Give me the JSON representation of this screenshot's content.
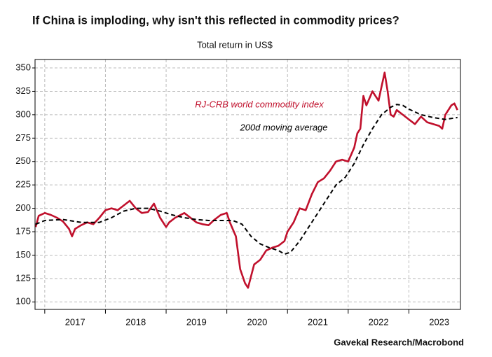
{
  "chart_data": {
    "type": "line",
    "title": "If China is imploding, why isn't this reflected in commodity prices?",
    "subtitle": "Total return in US$",
    "source": "Gavekal Research/Macrobond",
    "xlim": [
      2016.84,
      2023.85
    ],
    "xticks": [
      2017,
      2018,
      2019,
      2020,
      2021,
      2022,
      2023
    ],
    "year_labels": [
      {
        "value": 2017.5,
        "label": "2017"
      },
      {
        "value": 2018.5,
        "label": "2018"
      },
      {
        "value": 2019.5,
        "label": "2019"
      },
      {
        "value": 2020.5,
        "label": "2020"
      },
      {
        "value": 2021.5,
        "label": "2021"
      },
      {
        "value": 2022.5,
        "label": "2022"
      },
      {
        "value": 2023.5,
        "label": "2023"
      }
    ],
    "ylim": [
      92,
      359
    ],
    "yticks": [
      100,
      125,
      150,
      175,
      200,
      225,
      250,
      275,
      300,
      325,
      350
    ],
    "grid": true,
    "series": [
      {
        "name": "RJ-CRB world commodity index",
        "color": "#c0102c",
        "dashed": false,
        "x": [
          2016.85,
          2016.9,
          2017.0,
          2017.1,
          2017.2,
          2017.3,
          2017.4,
          2017.45,
          2017.5,
          2017.6,
          2017.7,
          2017.8,
          2017.9,
          2018.0,
          2018.1,
          2018.2,
          2018.3,
          2018.4,
          2018.5,
          2018.6,
          2018.7,
          2018.8,
          2018.9,
          2019.0,
          2019.05,
          2019.15,
          2019.3,
          2019.4,
          2019.5,
          2019.6,
          2019.7,
          2019.8,
          2019.9,
          2020.0,
          2020.05,
          2020.15,
          2020.22,
          2020.3,
          2020.35,
          2020.45,
          2020.55,
          2020.65,
          2020.75,
          2020.85,
          2020.95,
          2021.0,
          2021.1,
          2021.2,
          2021.3,
          2021.4,
          2021.5,
          2021.6,
          2021.7,
          2021.8,
          2021.9,
          2022.0,
          2022.1,
          2022.15,
          2022.2,
          2022.25,
          2022.3,
          2022.4,
          2022.5,
          2022.55,
          2022.6,
          2022.65,
          2022.7,
          2022.75,
          2022.8,
          2022.9,
          2023.0,
          2023.1,
          2023.2,
          2023.3,
          2023.4,
          2023.5,
          2023.55,
          2023.6,
          2023.7,
          2023.75,
          2023.8
        ],
        "values": [
          180,
          192,
          195,
          193,
          190,
          186,
          178,
          170,
          178,
          182,
          185,
          183,
          190,
          198,
          200,
          198,
          203,
          208,
          200,
          195,
          196,
          205,
          190,
          180,
          185,
          190,
          195,
          190,
          185,
          183,
          182,
          188,
          193,
          195,
          185,
          170,
          135,
          120,
          115,
          140,
          145,
          155,
          158,
          160,
          165,
          175,
          185,
          200,
          198,
          215,
          228,
          232,
          240,
          250,
          252,
          250,
          265,
          280,
          285,
          320,
          310,
          325,
          315,
          330,
          345,
          325,
          300,
          298,
          305,
          300,
          295,
          290,
          298,
          292,
          290,
          288,
          285,
          300,
          310,
          312,
          305
        ]
      },
      {
        "name": "200d moving average",
        "color": "#000000",
        "dashed": true,
        "x": [
          2016.85,
          2017.0,
          2017.3,
          2017.6,
          2017.9,
          2018.1,
          2018.3,
          2018.5,
          2018.7,
          2018.9,
          2019.1,
          2019.3,
          2019.5,
          2019.7,
          2019.9,
          2020.1,
          2020.25,
          2020.4,
          2020.55,
          2020.7,
          2020.85,
          2020.95,
          2021.05,
          2021.2,
          2021.35,
          2021.5,
          2021.65,
          2021.8,
          2021.95,
          2022.1,
          2022.25,
          2022.4,
          2022.55,
          2022.7,
          2022.8,
          2022.9,
          2023.0,
          2023.2,
          2023.4,
          2023.6,
          2023.8
        ],
        "values": [
          183,
          187,
          188,
          185,
          185,
          190,
          197,
          200,
          200,
          197,
          193,
          190,
          188,
          187,
          187,
          187,
          183,
          170,
          162,
          158,
          155,
          151,
          153,
          165,
          180,
          195,
          210,
          225,
          233,
          248,
          268,
          285,
          300,
          308,
          311,
          310,
          306,
          300,
          297,
          295,
          297
        ]
      }
    ]
  }
}
